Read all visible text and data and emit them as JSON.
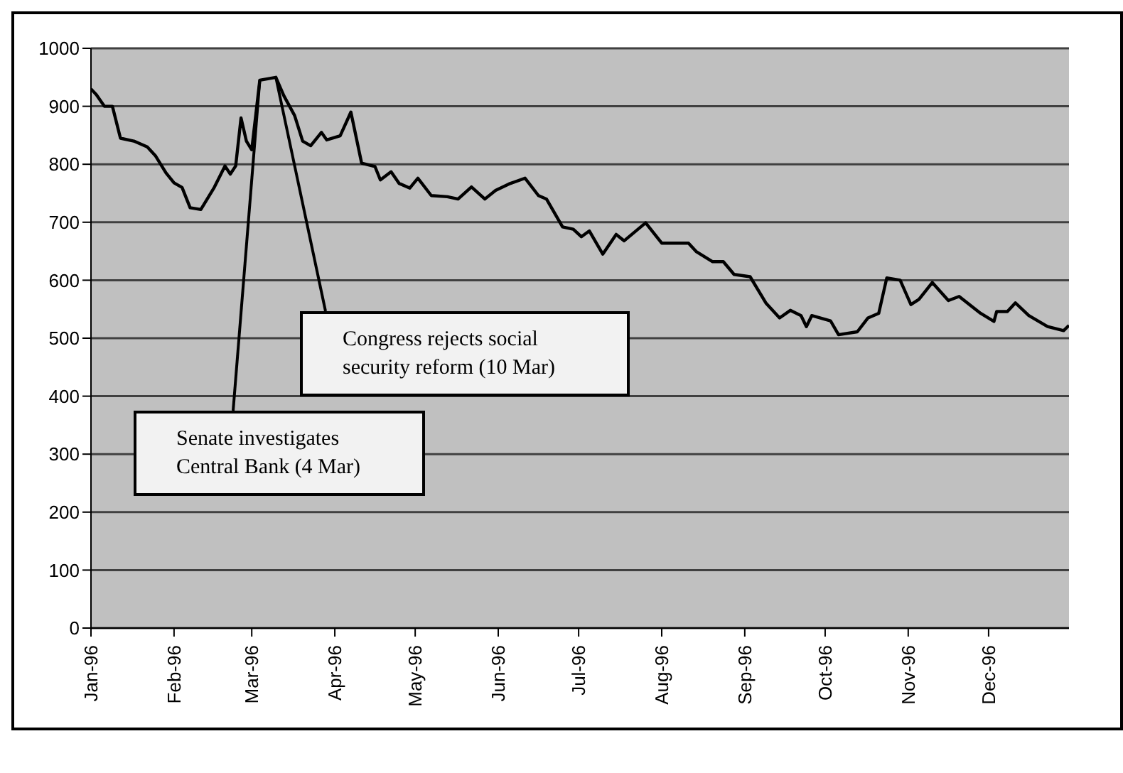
{
  "chart_data": {
    "type": "line",
    "x": [
      "1996-01-01",
      "1996-01-03",
      "1996-01-06",
      "1996-01-09",
      "1996-01-12",
      "1996-01-17",
      "1996-01-22",
      "1996-01-25",
      "1996-01-29",
      "1996-02-01",
      "1996-02-04",
      "1996-02-07",
      "1996-02-11",
      "1996-02-16",
      "1996-02-20",
      "1996-02-22",
      "1996-02-24",
      "1996-02-26",
      "1996-02-28",
      "1996-03-01",
      "1996-03-04",
      "1996-03-10",
      "1996-03-13",
      "1996-03-17",
      "1996-03-20",
      "1996-03-23",
      "1996-03-27",
      "1996-03-29",
      "1996-04-03",
      "1996-04-07",
      "1996-04-11",
      "1996-04-16",
      "1996-04-18",
      "1996-04-22",
      "1996-04-25",
      "1996-04-29",
      "1996-05-02",
      "1996-05-07",
      "1996-05-13",
      "1996-05-17",
      "1996-05-22",
      "1996-05-27",
      "1996-05-31",
      "1996-06-05",
      "1996-06-11",
      "1996-06-16",
      "1996-06-19",
      "1996-06-25",
      "1996-06-29",
      "1996-07-02",
      "1996-07-05",
      "1996-07-10",
      "1996-07-15",
      "1996-07-18",
      "1996-07-26",
      "1996-08-01",
      "1996-08-11",
      "1996-08-14",
      "1996-08-20",
      "1996-08-24",
      "1996-08-28",
      "1996-09-03",
      "1996-09-09",
      "1996-09-14",
      "1996-09-18",
      "1996-09-22",
      "1996-09-24",
      "1996-09-26",
      "1996-10-03",
      "1996-10-06",
      "1996-10-13",
      "1996-10-17",
      "1996-10-21",
      "1996-10-24",
      "1996-10-29",
      "1996-11-02",
      "1996-11-05",
      "1996-11-10",
      "1996-11-16",
      "1996-11-20",
      "1996-11-28",
      "1996-12-03",
      "1996-12-04",
      "1996-12-08",
      "1996-12-11",
      "1996-12-16",
      "1996-12-23",
      "1996-12-29",
      "1996-12-31"
    ],
    "series": [
      {
        "color": "#000000",
        "values": [
          930,
          920,
          900,
          900,
          845,
          840,
          830,
          815,
          785,
          768,
          760,
          725,
          722,
          760,
          797,
          783,
          797,
          880,
          840,
          825,
          945,
          950,
          918,
          884,
          840,
          832,
          855,
          842,
          849,
          890,
          802,
          796,
          773,
          787,
          767,
          759,
          776,
          746,
          744,
          740,
          761,
          740,
          755,
          766,
          776,
          746,
          740,
          692,
          688,
          675,
          685,
          645,
          679,
          668,
          699,
          664,
          664,
          649,
          632,
          632,
          610,
          606,
          560,
          535,
          548,
          539,
          520,
          539,
          530,
          506,
          511,
          535,
          543,
          604,
          600,
          558,
          567,
          596,
          565,
          572,
          543,
          529,
          546,
          546,
          561,
          539,
          520,
          513,
          522
        ]
      }
    ],
    "xlim": [
      "1996-01-01",
      "1996-12-31"
    ],
    "xticks": [
      {
        "value": "1996-01-01",
        "label": "Jan-96"
      },
      {
        "value": "1996-02-01",
        "label": "Feb-96"
      },
      {
        "value": "1996-03-01",
        "label": "Mar-96"
      },
      {
        "value": "1996-04-01",
        "label": "Apr-96"
      },
      {
        "value": "1996-05-01",
        "label": "May-96"
      },
      {
        "value": "1996-06-01",
        "label": "Jun-96"
      },
      {
        "value": "1996-07-01",
        "label": "Jul-96"
      },
      {
        "value": "1996-08-01",
        "label": "Aug-96"
      },
      {
        "value": "1996-09-01",
        "label": "Sep-96"
      },
      {
        "value": "1996-10-01",
        "label": "Oct-96"
      },
      {
        "value": "1996-11-01",
        "label": "Nov-96"
      },
      {
        "value": "1996-12-01",
        "label": "Dec-96"
      }
    ],
    "ylim": [
      0,
      1000
    ],
    "yticks": [
      0,
      100,
      200,
      300,
      400,
      500,
      600,
      700,
      800,
      900,
      1000
    ],
    "grid": "y",
    "legend": false,
    "marker": "none",
    "line_style": "solid",
    "annotations": [
      {
        "text": "Congress rejects social security reform (10 Mar)",
        "x": "1996-03-10",
        "y": 950
      },
      {
        "text": "Senate investigates Central Bank (4 Mar)",
        "x": "1996-03-04",
        "y": 945
      }
    ]
  }
}
